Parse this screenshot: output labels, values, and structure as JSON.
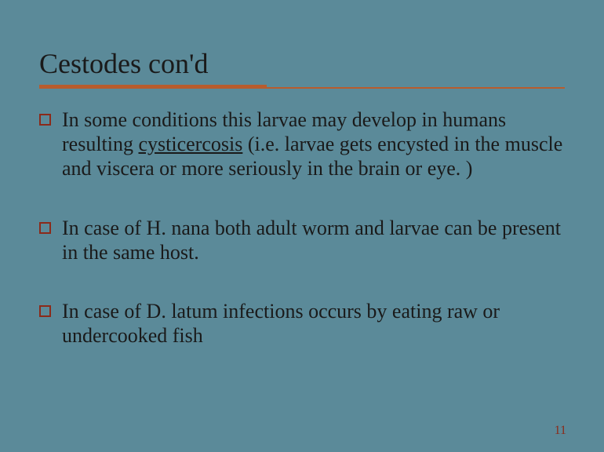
{
  "slide": {
    "title": "Cestodes con'd",
    "bullets": [
      {
        "pre": "In some conditions this larvae may develop in humans resulting ",
        "underlined": "cysticercosis",
        "post": " (i.e. larvae gets encysted in the muscle and viscera or more seriously in the brain or eye. )"
      },
      {
        "pre": " In case of H. nana both adult worm and larvae can be present in the same host.",
        "underlined": "",
        "post": ""
      },
      {
        "pre": " In case of D. latum infections occurs by eating raw or undercooked fish",
        "underlined": "",
        "post": ""
      }
    ],
    "pageNumber": "11"
  },
  "colors": {
    "background": "#5b8a99",
    "accent": "#b85c2e",
    "bulletBorder": "#8b2a1a",
    "text": "#1a1a1a"
  }
}
